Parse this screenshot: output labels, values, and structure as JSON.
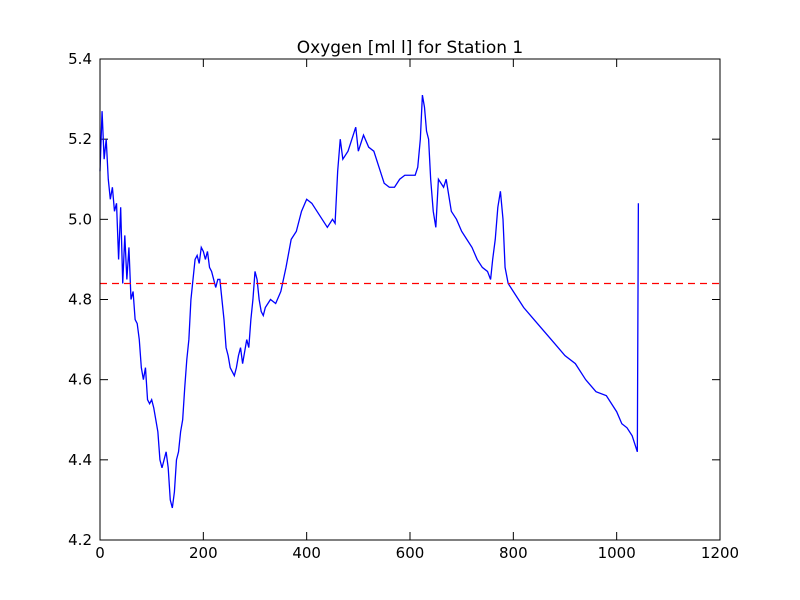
{
  "chart_data": {
    "type": "line",
    "title": "Oxygen [ml l] for Station 1",
    "x": [
      0,
      4,
      8,
      12,
      16,
      20,
      24,
      28,
      32,
      36,
      40,
      44,
      48,
      52,
      56,
      60,
      64,
      68,
      72,
      76,
      80,
      84,
      88,
      92,
      96,
      100,
      104,
      108,
      112,
      116,
      120,
      124,
      128,
      132,
      136,
      140,
      144,
      148,
      152,
      156,
      160,
      164,
      168,
      172,
      176,
      180,
      184,
      188,
      192,
      196,
      200,
      204,
      208,
      212,
      216,
      220,
      224,
      228,
      232,
      236,
      240,
      244,
      248,
      252,
      256,
      260,
      264,
      268,
      272,
      276,
      280,
      284,
      288,
      292,
      296,
      300,
      304,
      308,
      312,
      316,
      320,
      330,
      340,
      350,
      360,
      370,
      380,
      390,
      400,
      410,
      420,
      430,
      440,
      450,
      455,
      460,
      465,
      470,
      480,
      490,
      495,
      500,
      510,
      520,
      530,
      540,
      550,
      560,
      570,
      580,
      590,
      600,
      610,
      615,
      620,
      624,
      628,
      632,
      636,
      640,
      645,
      650,
      655,
      660,
      665,
      670,
      675,
      680,
      690,
      700,
      710,
      720,
      730,
      740,
      750,
      756,
      760,
      765,
      770,
      775,
      780,
      784,
      790,
      800,
      820,
      840,
      860,
      880,
      900,
      920,
      940,
      960,
      980,
      1000,
      1010,
      1020,
      1030,
      1035,
      1040,
      1042
    ],
    "series": [
      {
        "color": "#0000ff",
        "values": [
          5.12,
          5.27,
          5.15,
          5.2,
          5.1,
          5.05,
          5.08,
          5.02,
          5.04,
          4.9,
          5.03,
          4.84,
          4.96,
          4.85,
          4.93,
          4.8,
          4.82,
          4.75,
          4.74,
          4.7,
          4.63,
          4.6,
          4.63,
          4.55,
          4.54,
          4.55,
          4.53,
          4.5,
          4.47,
          4.4,
          4.38,
          4.4,
          4.42,
          4.38,
          4.3,
          4.28,
          4.32,
          4.4,
          4.42,
          4.47,
          4.5,
          4.58,
          4.65,
          4.7,
          4.8,
          4.85,
          4.9,
          4.91,
          4.89,
          4.93,
          4.92,
          4.9,
          4.92,
          4.88,
          4.87,
          4.85,
          4.83,
          4.85,
          4.85,
          4.8,
          4.75,
          4.68,
          4.66,
          4.63,
          4.62,
          4.61,
          4.63,
          4.66,
          4.68,
          4.64,
          4.67,
          4.7,
          4.68,
          4.75,
          4.8,
          4.87,
          4.85,
          4.8,
          4.77,
          4.76,
          4.78,
          4.8,
          4.79,
          4.82,
          4.88,
          4.95,
          4.97,
          5.02,
          5.05,
          5.04,
          5.02,
          5.0,
          4.98,
          5.0,
          4.99,
          5.12,
          5.2,
          5.15,
          5.17,
          5.21,
          5.23,
          5.17,
          5.21,
          5.18,
          5.17,
          5.13,
          5.09,
          5.08,
          5.08,
          5.1,
          5.11,
          5.11,
          5.11,
          5.13,
          5.2,
          5.31,
          5.28,
          5.22,
          5.2,
          5.1,
          5.02,
          4.98,
          5.1,
          5.09,
          5.08,
          5.1,
          5.06,
          5.02,
          5.0,
          4.97,
          4.95,
          4.93,
          4.9,
          4.88,
          4.87,
          4.85,
          4.9,
          4.95,
          5.03,
          5.07,
          5.0,
          4.88,
          4.84,
          4.82,
          4.78,
          4.75,
          4.72,
          4.69,
          4.66,
          4.64,
          4.6,
          4.57,
          4.56,
          4.52,
          4.49,
          4.48,
          4.46,
          4.44,
          4.42,
          5.04
        ]
      }
    ],
    "reference_line": {
      "value": 4.84,
      "color": "#ff0000"
    },
    "xlim": [
      0,
      1200
    ],
    "xticks": [
      0,
      200,
      400,
      600,
      800,
      1000,
      1200
    ],
    "ylim": [
      4.2,
      5.4
    ],
    "yticks": [
      4.2,
      4.4,
      4.6,
      4.8,
      {
        "value": 5,
        "label": "5.0"
      },
      5.2,
      5.4
    ]
  }
}
